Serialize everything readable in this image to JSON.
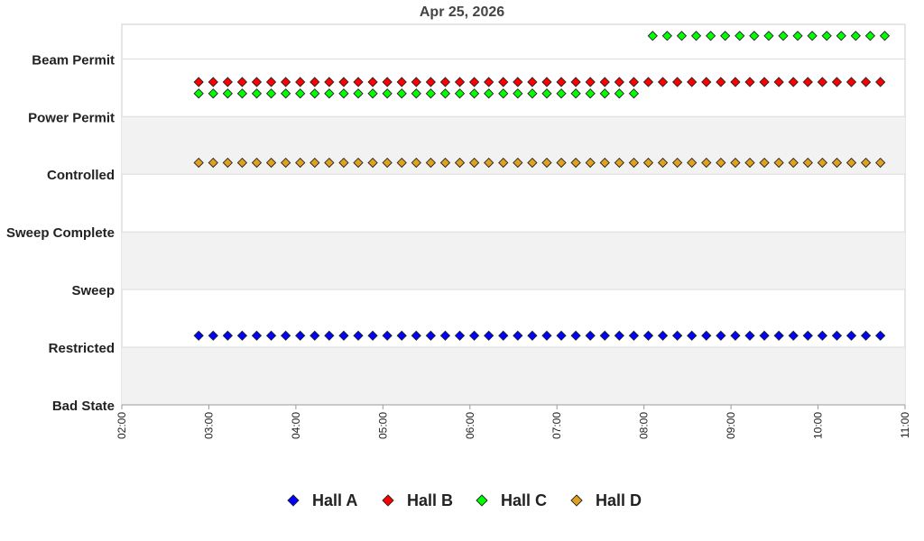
{
  "chart_data": {
    "type": "scatter",
    "title": "Apr 25, 2026",
    "xlabel": "",
    "ylabel": "",
    "x_ticks": [
      "02:00",
      "03:00",
      "04:00",
      "05:00",
      "06:00",
      "07:00",
      "08:00",
      "09:00",
      "10:00",
      "11:00"
    ],
    "xlim": [
      "02:00",
      "11:00"
    ],
    "y_categories": [
      "Bad State",
      "Restricted",
      "Sweep",
      "Sweep Complete",
      "Controlled",
      "Power Permit",
      "Beam Permit"
    ],
    "grid": "alternating horizontal bands",
    "legend": "bottom",
    "colors": {
      "Hall A": "#0000ff",
      "Hall B": "#ff0000",
      "Hall C": "#00ff00",
      "Hall D": "#e0a020"
    },
    "series": [
      {
        "name": "Hall A",
        "segments": [
          {
            "start": "02:53",
            "end": "10:47",
            "interval_min": 10,
            "level": 1.2
          }
        ]
      },
      {
        "name": "Hall B",
        "segments": [
          {
            "start": "02:53",
            "end": "10:47",
            "interval_min": 10,
            "level": 5.6
          }
        ]
      },
      {
        "name": "Hall C",
        "segments": [
          {
            "start": "02:53",
            "end": "07:56",
            "interval_min": 10,
            "level": 5.4
          },
          {
            "start": "08:06",
            "end": "10:47",
            "interval_min": 10,
            "level": 6.4
          }
        ]
      },
      {
        "name": "Hall D",
        "segments": [
          {
            "start": "02:53",
            "end": "10:47",
            "interval_min": 10,
            "level": 4.2
          }
        ]
      }
    ]
  }
}
